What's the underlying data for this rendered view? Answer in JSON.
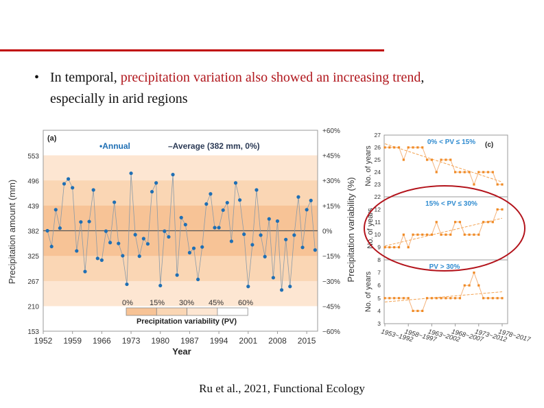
{
  "slide": {
    "bullet_prefix": "In temporal, ",
    "bullet_highlight": "precipitation variation also showed an increasing trend",
    "bullet_suffix": ",",
    "bullet_line2": "especially in arid regions",
    "citation": "Ru et al., 2021, Functional Ecology",
    "colors": {
      "rule": "#c00000",
      "highlight": "#b0161c"
    }
  },
  "chart_data": [
    {
      "type": "line",
      "panel_label": "(a)",
      "legend": {
        "annual": "•Annual",
        "average": "–Average (382 mm, 0%)"
      },
      "xlabel": "Year",
      "ylabel": "Precipitation amount (mm)",
      "y2label": "Precipitation variability (%)",
      "xticks": [
        1952,
        1959,
        1966,
        1973,
        1980,
        1987,
        1994,
        2001,
        2008,
        2015
      ],
      "yticks": [
        153,
        210,
        267,
        325,
        382,
        439,
        496,
        553
      ],
      "y2ticks": [
        "+60%",
        "+45%",
        "+30%",
        "+15%",
        "0%",
        "−15%",
        "−30%",
        "−45%",
        "−60%"
      ],
      "ylim": [
        153,
        611
      ],
      "average": 382,
      "pv_legend": {
        "title": "Precipitation variability (PV)",
        "labels": [
          "0%",
          "15%",
          "30%",
          "45%",
          "60%"
        ],
        "colors": [
          "#f7c396",
          "#fad6b4",
          "#fde6d2",
          "#ffffff"
        ]
      },
      "x": [
        1953,
        1954,
        1955,
        1956,
        1957,
        1958,
        1959,
        1960,
        1961,
        1962,
        1963,
        1964,
        1965,
        1966,
        1967,
        1968,
        1969,
        1970,
        1971,
        1972,
        1973,
        1974,
        1975,
        1976,
        1977,
        1978,
        1979,
        1980,
        1981,
        1982,
        1983,
        1984,
        1985,
        1986,
        1987,
        1988,
        1989,
        1990,
        1991,
        1992,
        1993,
        1994,
        1995,
        1996,
        1997,
        1998,
        1999,
        2000,
        2001,
        2002,
        2003,
        2004,
        2005,
        2006,
        2007,
        2008,
        2009,
        2010,
        2011,
        2012,
        2013,
        2014,
        2015,
        2016,
        2017
      ],
      "series": [
        {
          "name": "Annual",
          "color": "#1f6fb4",
          "values": [
            382,
            346,
            430,
            388,
            489,
            500,
            480,
            336,
            402,
            289,
            403,
            475,
            319,
            315,
            381,
            355,
            447,
            353,
            325,
            260,
            513,
            373,
            324,
            364,
            352,
            471,
            491,
            257,
            381,
            368,
            510,
            281,
            412,
            396,
            332,
            342,
            271,
            345,
            443,
            466,
            389,
            389,
            429,
            446,
            358,
            491,
            452,
            374,
            255,
            350,
            475,
            372,
            323,
            409,
            275,
            404,
            247,
            362,
            255,
            372,
            459,
            344,
            430,
            451,
            338
          ]
        }
      ]
    },
    {
      "type": "line",
      "panel_label": "(c)",
      "ylabel": "No. of years",
      "y2label": "Precipitation variability (%)",
      "categories": [
        "1953~1992",
        "1958~1997",
        "1963~2002",
        "1968~2007",
        "1973~2012",
        "1978~2017"
      ],
      "color": "#f08a24",
      "panels": [
        {
          "title": "0% < PV ≤ 15%",
          "ylim": [
            22,
            27
          ],
          "yticks": [
            22,
            23,
            24,
            25,
            26,
            27
          ],
          "trend": [
            26.3,
            23.2
          ],
          "values": [
            26,
            26,
            26,
            26,
            25,
            26,
            26,
            26,
            26,
            25,
            25,
            24,
            25,
            25,
            25,
            24,
            24,
            24,
            24,
            23,
            24,
            24,
            24,
            24,
            23,
            23
          ]
        },
        {
          "title": "15% < PV ≤ 30%",
          "ylim": [
            8,
            13
          ],
          "yticks": [
            9,
            10,
            11,
            12
          ],
          "trend": [
            9.1,
            11.3
          ],
          "values": [
            9,
            9,
            9,
            9,
            10,
            9,
            10,
            10,
            10,
            10,
            10,
            11,
            10,
            10,
            10,
            11,
            11,
            10,
            10,
            10,
            10,
            11,
            11,
            11,
            12,
            12
          ]
        },
        {
          "title": "PV > 30%",
          "ylim": [
            3,
            8
          ],
          "yticks": [
            3,
            4,
            5,
            6,
            7,
            8
          ],
          "trend": [
            4.7,
            5.5
          ],
          "values": [
            5,
            5,
            5,
            5,
            5,
            5,
            4,
            4,
            4,
            5,
            5,
            5,
            5,
            5,
            5,
            5,
            5,
            6,
            6,
            7,
            6,
            5,
            5,
            5,
            5,
            5
          ]
        }
      ],
      "highlight_color": "#b3131b"
    }
  ]
}
